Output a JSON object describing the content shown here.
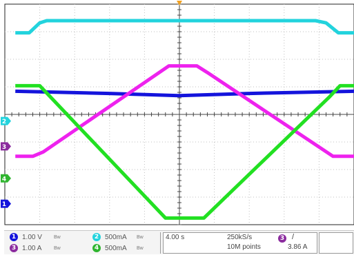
{
  "colors": {
    "ch1": "#1414dc",
    "ch2": "#22d3dd",
    "ch3": "#8b2b9e",
    "ch4": "#2fb52f",
    "trace3": "#ee22ee",
    "trace4": "#22e022",
    "grid": "#bfbfbf",
    "trigger_marker": "#f0a020"
  },
  "channels": [
    {
      "number": "1",
      "scale": "1.00 V",
      "bw_icon": "bandwidth-limit-icon"
    },
    {
      "number": "2",
      "scale": "500mA",
      "bw_icon": "bandwidth-limit-icon"
    },
    {
      "number": "3",
      "scale": "1.00 A",
      "bw_icon": "bandwidth-limit-icon"
    },
    {
      "number": "4",
      "scale": "500mA",
      "bw_icon": "bandwidth-limit-icon"
    }
  ],
  "timebase": {
    "horizontal_scale": "4.00 s",
    "sample_rate": "250kS/s",
    "record_length": "10M points"
  },
  "trigger": {
    "source": "3",
    "slope_icon": "rising-edge-icon",
    "slope_glyph": "/",
    "level": "3.86 A"
  },
  "level_markers": [
    "2",
    "3",
    "4",
    "1"
  ],
  "bw_glyph": "Bw",
  "waveform_shapes": {
    "description_free": true,
    "ch1": {
      "level": 0.605,
      "dip": 0.02
    },
    "ch2": {
      "low": 0.87,
      "high": 0.925
    },
    "ch3": {
      "low": 0.31,
      "high": 0.72
    },
    "ch4": {
      "low": 0.0,
      "high": 0.63
    }
  }
}
